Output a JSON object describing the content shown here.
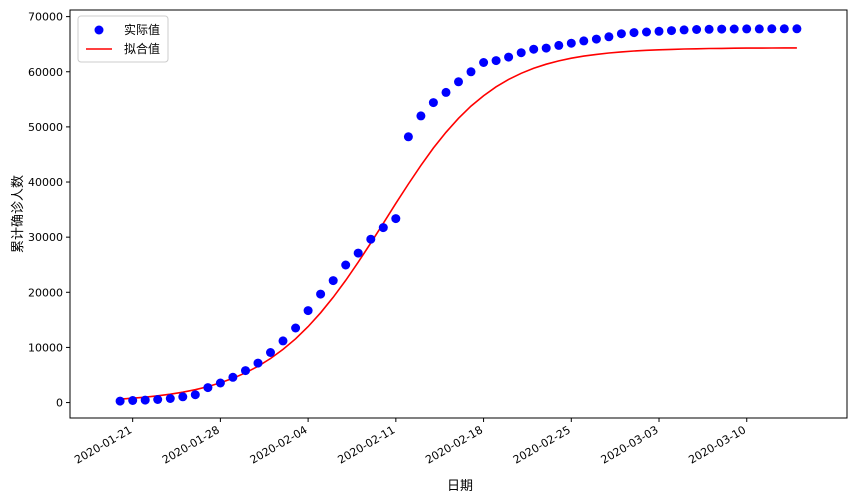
{
  "chart_data": {
    "type": "scatter",
    "title": "",
    "xlabel": "日期",
    "ylabel": "累计确诊人数",
    "x_ticks": [
      "2020-01-21",
      "2020-01-28",
      "2020-02-04",
      "2020-02-11",
      "2020-02-18",
      "2020-02-25",
      "2020-03-03",
      "2020-03-10"
    ],
    "y_ticks": [
      0,
      10000,
      20000,
      30000,
      40000,
      50000,
      60000,
      70000
    ],
    "xlim": [
      "2020-01-16",
      "2020-03-18"
    ],
    "ylim": [
      -2800,
      71200
    ],
    "grid": false,
    "legend": "upper-left",
    "series": [
      {
        "name": "实际值",
        "kind": "scatter",
        "color": "#0000ff",
        "dates": [
          "2020-01-20",
          "2020-01-21",
          "2020-01-22",
          "2020-01-23",
          "2020-01-24",
          "2020-01-25",
          "2020-01-26",
          "2020-01-27",
          "2020-01-28",
          "2020-01-29",
          "2020-01-30",
          "2020-01-31",
          "2020-02-01",
          "2020-02-02",
          "2020-02-03",
          "2020-02-04",
          "2020-02-05",
          "2020-02-06",
          "2020-02-07",
          "2020-02-08",
          "2020-02-09",
          "2020-02-10",
          "2020-02-11",
          "2020-02-12",
          "2020-02-13",
          "2020-02-14",
          "2020-02-15",
          "2020-02-16",
          "2020-02-17",
          "2020-02-18",
          "2020-02-19",
          "2020-02-20",
          "2020-02-21",
          "2020-02-22",
          "2020-02-23",
          "2020-02-24",
          "2020-02-25",
          "2020-02-26",
          "2020-02-27",
          "2020-02-28",
          "2020-02-29",
          "2020-03-01",
          "2020-03-02",
          "2020-03-03",
          "2020-03-04",
          "2020-03-05",
          "2020-03-06",
          "2020-03-07",
          "2020-03-08",
          "2020-03-09",
          "2020-03-10",
          "2020-03-11",
          "2020-03-12",
          "2020-03-13",
          "2020-03-14"
        ],
        "values": [
          270,
          375,
          444,
          549,
          729,
          1052,
          1423,
          2714,
          3554,
          4586,
          5806,
          7153,
          9074,
          11177,
          13522,
          16678,
          19665,
          22112,
          24953,
          27100,
          29631,
          31728,
          33366,
          48206,
          51986,
          54406,
          56249,
          58182,
          59989,
          61682,
          62031,
          62662,
          63454,
          64084,
          64287,
          64786,
          65187,
          65596,
          65914,
          66337,
          66907,
          67103,
          67217,
          67332,
          67466,
          67592,
          67666,
          67707,
          67743,
          67760,
          67773,
          67781,
          67786,
          67790,
          67794
        ]
      },
      {
        "name": "拟合值",
        "kind": "line",
        "color": "#ff0000",
        "dates": [
          "2020-01-20",
          "2020-01-21",
          "2020-01-22",
          "2020-01-23",
          "2020-01-24",
          "2020-01-25",
          "2020-01-26",
          "2020-01-27",
          "2020-01-28",
          "2020-01-29",
          "2020-01-30",
          "2020-01-31",
          "2020-02-01",
          "2020-02-02",
          "2020-02-03",
          "2020-02-04",
          "2020-02-05",
          "2020-02-06",
          "2020-02-07",
          "2020-02-08",
          "2020-02-09",
          "2020-02-10",
          "2020-02-11",
          "2020-02-12",
          "2020-02-13",
          "2020-02-14",
          "2020-02-15",
          "2020-02-16",
          "2020-02-17",
          "2020-02-18",
          "2020-02-19",
          "2020-02-20",
          "2020-02-21",
          "2020-02-22",
          "2020-02-23",
          "2020-02-24",
          "2020-02-25",
          "2020-02-26",
          "2020-02-27",
          "2020-02-28",
          "2020-02-29",
          "2020-03-01",
          "2020-03-02",
          "2020-03-03",
          "2020-03-04",
          "2020-03-05",
          "2020-03-06",
          "2020-03-07",
          "2020-03-08",
          "2020-03-09",
          "2020-03-10",
          "2020-03-11",
          "2020-03-12",
          "2020-03-13",
          "2020-03-14"
        ],
        "values": [
          627,
          783,
          978,
          1219,
          1518,
          1887,
          2340,
          2897,
          3576,
          4400,
          5393,
          6580,
          7989,
          9644,
          11569,
          13780,
          16286,
          19083,
          22152,
          25453,
          28932,
          32515,
          36117,
          39648,
          43021,
          46163,
          49017,
          51555,
          53767,
          55665,
          57271,
          58612,
          59721,
          60631,
          61372,
          61972,
          62456,
          62844,
          63155,
          63403,
          63600,
          63757,
          63882,
          63981,
          64059,
          64121,
          64170,
          64209,
          64239,
          64263,
          64282,
          64297,
          64309,
          64318,
          64326
        ]
      }
    ]
  }
}
